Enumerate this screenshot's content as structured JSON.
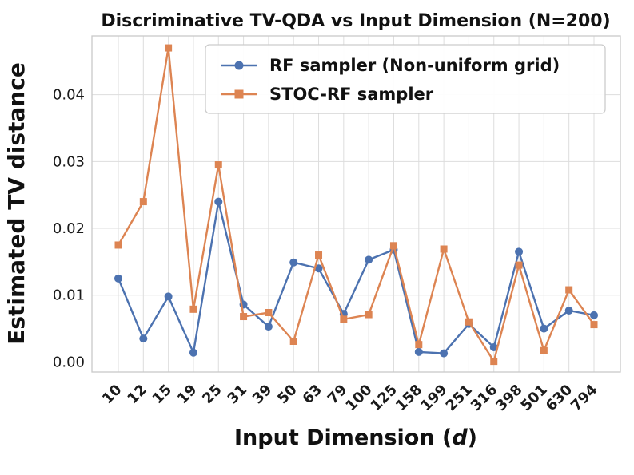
{
  "chart_data": {
    "type": "line",
    "title": "Discriminative TV-QDA vs Input Dimension (N=200)",
    "xlabel": "Input Dimension (d)",
    "xlabel_parts": {
      "pre": "Input Dimension (",
      "italic": "d",
      "post": ")"
    },
    "ylabel": "Estimated TV distance",
    "categories": [
      "10",
      "12",
      "15",
      "19",
      "25",
      "31",
      "39",
      "50",
      "63",
      "79",
      "100",
      "125",
      "158",
      "199",
      "251",
      "316",
      "398",
      "501",
      "630",
      "794"
    ],
    "ylim": [
      -0.0015,
      0.0488
    ],
    "yticks": [
      0.0,
      0.01,
      0.02,
      0.03,
      0.04
    ],
    "ytick_labels": [
      "0.00",
      "0.01",
      "0.02",
      "0.03",
      "0.04"
    ],
    "grid": true,
    "grid_color": "#dddddd",
    "border_color": "#c9c9c9",
    "legend_position": "upper center",
    "series": [
      {
        "name": "RF sampler (Non-uniform grid)",
        "marker": "circle",
        "color": "#4C72B0",
        "values": [
          0.0125,
          0.0035,
          0.0098,
          0.0014,
          0.024,
          0.0086,
          0.0053,
          0.0149,
          0.014,
          0.0072,
          0.0153,
          0.0168,
          0.0015,
          0.0013,
          0.0057,
          0.0022,
          0.0165,
          0.005,
          0.0077,
          0.007
        ]
      },
      {
        "name": "STOC-RF sampler",
        "marker": "square",
        "color": "#DD8452",
        "values": [
          0.0175,
          0.024,
          0.047,
          0.0079,
          0.0295,
          0.0068,
          0.0074,
          0.0031,
          0.016,
          0.0064,
          0.0071,
          0.0174,
          0.0026,
          0.0169,
          0.006,
          0.0001,
          0.0145,
          0.0017,
          0.0108,
          0.0056
        ]
      }
    ]
  }
}
